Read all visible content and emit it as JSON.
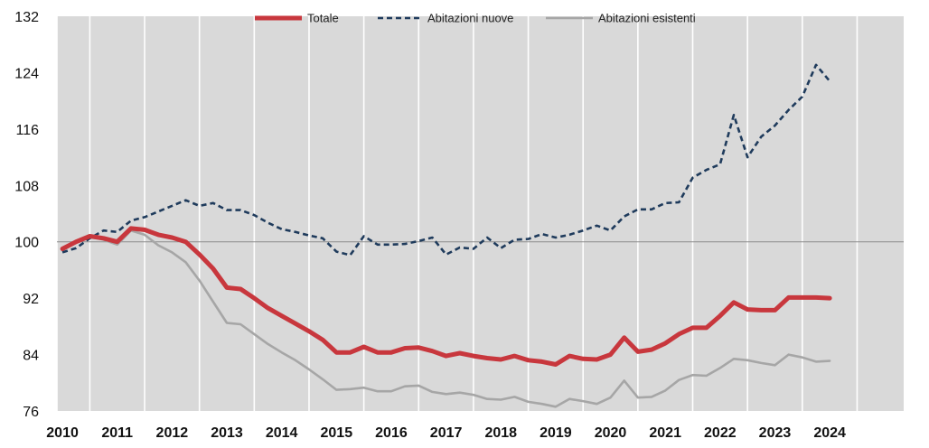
{
  "chart_data": {
    "type": "line",
    "title": "",
    "xlabel": "",
    "ylabel": "",
    "ylim": [
      76,
      132
    ],
    "yticks": [
      76,
      84,
      92,
      100,
      108,
      116,
      124,
      132
    ],
    "xlim": [
      2009.9,
      2025.35
    ],
    "x_tick_labels": [
      "2010",
      "2011",
      "2012",
      "2013",
      "2014",
      "2015",
      "2016",
      "2017",
      "2018",
      "2019",
      "2020",
      "2021",
      "2022",
      "2023",
      "2024"
    ],
    "reference_line": 100,
    "grid": "vertical",
    "legend_position": "top",
    "plot_background": "#d9d9d9",
    "x": [
      2010.0,
      2010.25,
      2010.5,
      2010.75,
      2011.0,
      2011.25,
      2011.5,
      2011.75,
      2012.0,
      2012.25,
      2012.5,
      2012.75,
      2013.0,
      2013.25,
      2013.5,
      2013.75,
      2014.0,
      2014.25,
      2014.5,
      2014.75,
      2015.0,
      2015.25,
      2015.5,
      2015.75,
      2016.0,
      2016.25,
      2016.5,
      2016.75,
      2017.0,
      2017.25,
      2017.5,
      2017.75,
      2018.0,
      2018.25,
      2018.5,
      2018.75,
      2019.0,
      2019.25,
      2019.5,
      2019.75,
      2020.0,
      2020.25,
      2020.5,
      2020.75,
      2021.0,
      2021.25,
      2021.5,
      2021.75,
      2022.0,
      2022.25,
      2022.5,
      2022.75,
      2023.0,
      2023.25,
      2023.5,
      2023.75,
      2024.0
    ],
    "series": [
      {
        "name": "Totale",
        "color": "#c8373d",
        "style": "solid-thick",
        "values": [
          99.0,
          100.0,
          100.8,
          100.5,
          100.0,
          101.9,
          101.7,
          101.0,
          100.6,
          100.0,
          98.2,
          96.2,
          93.5,
          93.3,
          92.0,
          90.6,
          89.5,
          88.4,
          87.3,
          86.1,
          84.3,
          84.3,
          85.1,
          84.3,
          84.3,
          84.9,
          85.0,
          84.5,
          83.8,
          84.2,
          83.8,
          83.5,
          83.3,
          83.8,
          83.2,
          83.0,
          82.6,
          83.8,
          83.4,
          83.3,
          84.0,
          86.4,
          84.4,
          84.7,
          85.6,
          86.9,
          87.8,
          87.8,
          89.5,
          91.4,
          90.4,
          90.3,
          90.3,
          92.1,
          92.1,
          92.1,
          92.0
        ]
      },
      {
        "name": "Abitazioni nuove",
        "color": "#1f3b5c",
        "style": "dashed",
        "values": [
          98.5,
          99.1,
          100.5,
          101.6,
          101.4,
          103.0,
          103.5,
          104.3,
          105.1,
          105.9,
          105.1,
          105.5,
          104.5,
          104.5,
          103.8,
          102.7,
          101.8,
          101.4,
          100.9,
          100.5,
          98.6,
          98.1,
          100.8,
          99.6,
          99.6,
          99.7,
          100.1,
          100.6,
          98.2,
          99.2,
          99.0,
          100.6,
          99.1,
          100.3,
          100.4,
          101.1,
          100.6,
          101.0,
          101.6,
          102.3,
          101.6,
          103.6,
          104.6,
          104.6,
          105.5,
          105.6,
          109.1,
          110.2,
          111.0,
          118.0,
          112.0,
          114.9,
          116.5,
          118.7,
          120.6,
          125.1,
          122.8
        ]
      },
      {
        "name": "Abitazioni esistenti",
        "color": "#a6a6a6",
        "style": "solid",
        "values": [
          98.8,
          100.0,
          100.7,
          100.3,
          99.6,
          101.6,
          101.0,
          99.5,
          98.5,
          97.1,
          94.5,
          91.5,
          88.5,
          88.3,
          86.9,
          85.5,
          84.3,
          83.2,
          81.9,
          80.5,
          79.0,
          79.1,
          79.3,
          78.8,
          78.8,
          79.5,
          79.6,
          78.7,
          78.4,
          78.6,
          78.3,
          77.7,
          77.6,
          78.0,
          77.3,
          77.0,
          76.6,
          77.7,
          77.4,
          77.0,
          77.9,
          80.3,
          77.9,
          78.0,
          78.9,
          80.4,
          81.1,
          81.0,
          82.1,
          83.4,
          83.2,
          82.8,
          82.5,
          84.0,
          83.6,
          83.0,
          83.1
        ]
      }
    ]
  }
}
